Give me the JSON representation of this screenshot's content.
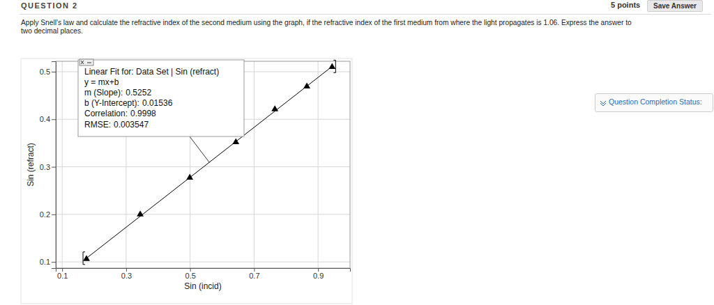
{
  "page": {
    "question_label": "QUESTION 2",
    "points": "5 points",
    "save_button": "Save Answer",
    "question_text": [
      "Apply Snell's law and calculate the refractive index of the second medium using the graph, if the refractive index of the first medium from where the light propagates is 1.06. Express the answer to",
      "two decimal places."
    ],
    "status": "Question Completion Status:"
  },
  "chart_data": {
    "type": "scatter",
    "x_label": "Sin (incid)",
    "y_label": "Sin (refract)",
    "x": [
      0.176,
      0.344,
      0.499,
      0.643,
      0.765,
      0.865,
      0.944
    ],
    "values": [
      0.106,
      0.2,
      0.277,
      0.352,
      0.421,
      0.469,
      0.51
    ],
    "marker": "triangle",
    "color": "#000000",
    "xlim": [
      0.08,
      1.0
    ],
    "xticks": [
      0.1,
      0.3,
      0.5,
      0.7,
      0.9
    ],
    "ylim": [
      0.087,
      0.522
    ],
    "yticks": [
      0.1,
      0.2,
      0.3,
      0.4,
      0.5
    ],
    "grid": true,
    "fit": {
      "title": "Linear Fit for: Data Set | Sin (refract)",
      "equation": "y = mx+b",
      "slope": {
        "label": "m (Slope):",
        "value": 0.5252
      },
      "intercept": {
        "label": "b (Y-Intercept):",
        "value": 0.01536
      },
      "correlation": {
        "label": "Correlation:",
        "value": 0.9998
      },
      "rmse": {
        "label": "RMSE:",
        "value": 0.003547
      }
    }
  }
}
